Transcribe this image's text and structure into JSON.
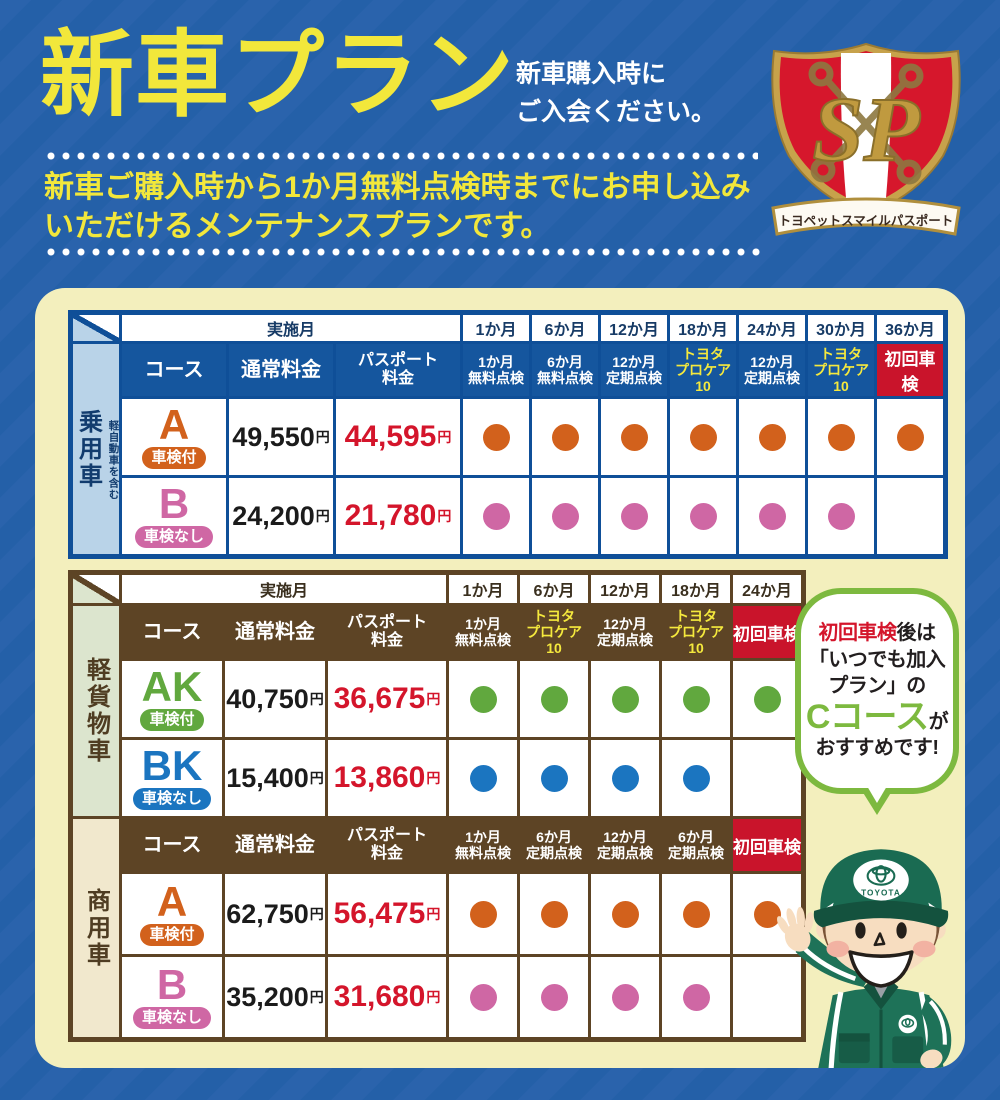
{
  "header": {
    "title": "新車プラン",
    "subtitle": "新車購入時に\nご入会ください。",
    "description": "新車ご購入時から1か月無料点検時までにお申し込み\nいただけるメンテナンスプランです。",
    "badge": {
      "monogram": "SP",
      "banner": "トヨペットスマイルパスポート"
    }
  },
  "labels": {
    "schedule": "実施月",
    "course": "コース",
    "regular_price": "通常料金",
    "passport_price": "パスポート\n料金",
    "yen": "円"
  },
  "tables": {
    "passenger": {
      "vehicle": "乗用車",
      "vehicle_note": "軽自動車を含む",
      "months": [
        "1か月",
        "6か月",
        "12か月",
        "18か月",
        "24か月",
        "30か月",
        "36か月"
      ],
      "inspections": [
        {
          "l1": "1か月",
          "l2": "無料点検",
          "style": "normal"
        },
        {
          "l1": "6か月",
          "l2": "無料点検",
          "style": "normal"
        },
        {
          "l1": "12か月",
          "l2": "定期点検",
          "style": "normal"
        },
        {
          "l1": "トヨタ",
          "l2": "プロケア10",
          "style": "yellow"
        },
        {
          "l1": "12か月",
          "l2": "定期点検",
          "style": "normal"
        },
        {
          "l1": "トヨタ",
          "l2": "プロケア10",
          "style": "yellow"
        },
        {
          "l1": "初回車検",
          "l2": "",
          "style": "red"
        }
      ],
      "rows": [
        {
          "course": "A",
          "badge": "車検付",
          "color": "#d2611c",
          "regular": "49,550",
          "passport": "44,595",
          "dots": [
            true,
            true,
            true,
            true,
            true,
            true,
            true
          ]
        },
        {
          "course": "B",
          "badge": "車検なし",
          "color": "#cf67a4",
          "regular": "24,200",
          "passport": "21,780",
          "dots": [
            true,
            true,
            true,
            true,
            true,
            true,
            false
          ]
        }
      ]
    },
    "kei_cargo": {
      "vehicle": "軽貨物車",
      "months": [
        "1か月",
        "6か月",
        "12か月",
        "18か月",
        "24か月"
      ],
      "inspections": [
        {
          "l1": "1か月",
          "l2": "無料点検",
          "style": "normal"
        },
        {
          "l1": "トヨタ",
          "l2": "プロケア10",
          "style": "yellow"
        },
        {
          "l1": "12か月",
          "l2": "定期点検",
          "style": "normal"
        },
        {
          "l1": "トヨタ",
          "l2": "プロケア10",
          "style": "yellow"
        },
        {
          "l1": "初回車検",
          "l2": "",
          "style": "red"
        }
      ],
      "rows": [
        {
          "course": "AK",
          "badge": "車検付",
          "color": "#61a83e",
          "regular": "40,750",
          "passport": "36,675",
          "dots": [
            true,
            true,
            true,
            true,
            true
          ]
        },
        {
          "course": "BK",
          "badge": "車検なし",
          "color": "#1b75c0",
          "regular": "15,400",
          "passport": "13,860",
          "dots": [
            true,
            true,
            true,
            true,
            false
          ]
        }
      ]
    },
    "commercial": {
      "vehicle": "商用車",
      "inspections": [
        {
          "l1": "1か月",
          "l2": "無料点検",
          "style": "normal"
        },
        {
          "l1": "6か月",
          "l2": "定期点検",
          "style": "normal"
        },
        {
          "l1": "12か月",
          "l2": "定期点検",
          "style": "normal"
        },
        {
          "l1": "6か月",
          "l2": "定期点検",
          "style": "normal"
        },
        {
          "l1": "初回車検",
          "l2": "",
          "style": "red"
        }
      ],
      "rows": [
        {
          "course": "A",
          "badge": "車検付",
          "color": "#d2611c",
          "regular": "62,750",
          "passport": "56,475",
          "dots": [
            true,
            true,
            true,
            true,
            true
          ]
        },
        {
          "course": "B",
          "badge": "車検なし",
          "color": "#cf67a4",
          "regular": "35,200",
          "passport": "31,680",
          "dots": [
            true,
            true,
            true,
            true,
            false
          ]
        }
      ]
    }
  },
  "bubble": {
    "l1_red": "初回車検",
    "l1_black": "後は",
    "l2": "「いつでも加入",
    "l3": "プラン」の",
    "l4_green": "Cコース",
    "l4_black": "が",
    "l5": "おすすめです!"
  },
  "mascot": {
    "cap_text": "TOYOTA"
  }
}
